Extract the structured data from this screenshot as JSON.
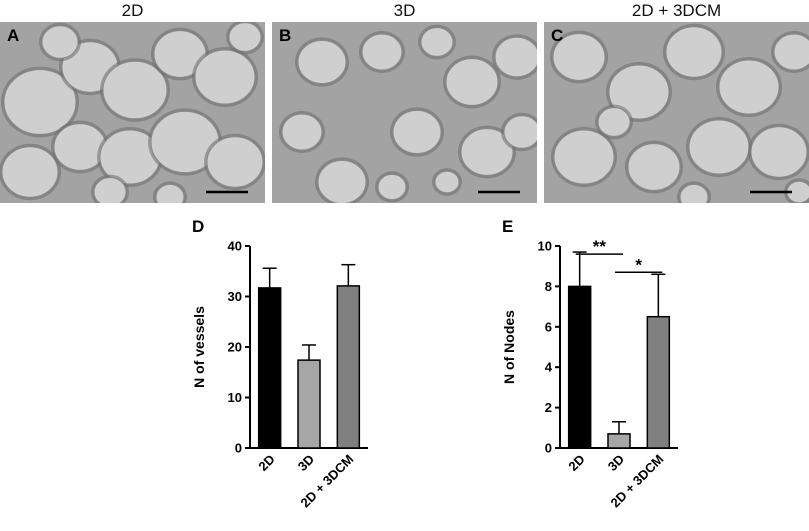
{
  "panels": [
    {
      "letter": "A",
      "title": "2D"
    },
    {
      "letter": "B",
      "title": "3D"
    },
    {
      "letter": "C",
      "title": "2D + 3DCM"
    }
  ],
  "chart_data": [
    {
      "panel": "D",
      "type": "bar",
      "categories": [
        "2D",
        "3D",
        "2D + 3DCM"
      ],
      "values": [
        31.7,
        17.4,
        32.1
      ],
      "errors": [
        3.9,
        3.0,
        4.2
      ],
      "bar_colors": [
        "#000000",
        "#a6a6a6",
        "#808080"
      ],
      "ylabel": "N of vessels",
      "ylim": [
        0,
        40
      ],
      "yticks": [
        "0",
        "10",
        "20",
        "30",
        "40"
      ],
      "grid": false,
      "significance": []
    },
    {
      "panel": "E",
      "type": "bar",
      "categories": [
        "2D",
        "3D",
        "2D + 3DCM"
      ],
      "values": [
        8.0,
        0.7,
        6.5
      ],
      "errors": [
        1.7,
        0.6,
        2.1
      ],
      "bar_colors": [
        "#000000",
        "#a6a6a6",
        "#808080"
      ],
      "ylabel": "N of Nodes",
      "ylim": [
        0,
        10
      ],
      "yticks": [
        "0",
        "2",
        "4",
        "6",
        "8",
        "10"
      ],
      "grid": false,
      "significance": [
        {
          "from": 0,
          "to": 1,
          "label": "**",
          "y": 9.6
        },
        {
          "from": 1,
          "to": 2,
          "label": "*",
          "y": 8.7
        }
      ]
    }
  ]
}
